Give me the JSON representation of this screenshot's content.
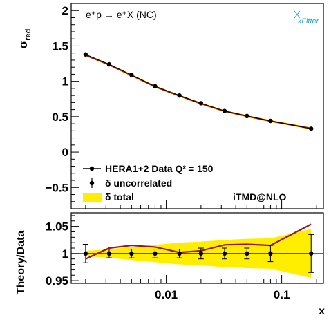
{
  "chart_data": [
    {
      "type": "line",
      "panel": "main",
      "ylabel_main": "σ",
      "ylabel_sub": "red",
      "annotation": "e⁺p → e⁺X (NC)",
      "logo_text": "xFitter",
      "model_label": "iTMD@NLO",
      "xscale": "log",
      "xlim": [
        0.0015,
        0.23
      ],
      "ylim": [
        -0.8,
        2.1
      ],
      "yticks": [
        "2",
        "1.5",
        "1",
        "0.5",
        "0",
        "−0.5"
      ],
      "legend_position": "bottom-left",
      "legend": [
        {
          "marker": "line-dot",
          "text": "HERA1+2 Data Q² = 150"
        },
        {
          "marker": "dot-errorbar",
          "text": "δ uncorrelated"
        },
        {
          "marker": "band",
          "text": "δ total"
        }
      ],
      "x": [
        0.002,
        0.0032,
        0.005,
        0.008,
        0.013,
        0.02,
        0.032,
        0.05,
        0.08,
        0.18
      ],
      "series": [
        {
          "values": [
            1.38,
            1.24,
            1.09,
            0.93,
            0.8,
            0.69,
            0.58,
            0.51,
            0.44,
            0.33
          ]
        }
      ],
      "theory": [
        1.37,
        1.235,
        1.085,
        0.925,
        0.795,
        0.685,
        0.578,
        0.508,
        0.438,
        0.333
      ],
      "band_halfwidth": 0.015,
      "colors": {
        "band": "#ffee00",
        "theory": "#a0141e",
        "data": "#000000"
      }
    },
    {
      "type": "line",
      "panel": "ratio",
      "ylabel": "Theory/Data",
      "xlabel": "x",
      "xscale": "log",
      "xlim": [
        0.0015,
        0.23
      ],
      "ylim": [
        0.945,
        1.075
      ],
      "yticks": [
        "1.05",
        "1",
        "0.95"
      ],
      "xticks": [
        {
          "value": 0.01,
          "label": "0.01"
        },
        {
          "value": 0.1,
          "label": "0.1"
        }
      ],
      "x": [
        0.002,
        0.0032,
        0.005,
        0.008,
        0.013,
        0.02,
        0.032,
        0.05,
        0.08,
        0.18
      ],
      "ratio": [
        0.99,
        1.01,
        1.015,
        1.012,
        1.002,
        1.005,
        1.016,
        1.017,
        1.015,
        1.054
      ],
      "data_err": [
        0.017,
        0.008,
        0.008,
        0.008,
        0.008,
        0.01,
        0.01,
        0.01,
        0.015,
        0.035
      ],
      "band_upper": [
        1.005,
        1.008,
        1.012,
        1.016,
        1.02,
        1.022,
        1.025,
        1.027,
        1.028,
        1.045
      ],
      "band_lower": [
        0.995,
        0.992,
        0.988,
        0.984,
        0.98,
        0.978,
        0.975,
        0.973,
        0.972,
        0.955
      ]
    }
  ]
}
